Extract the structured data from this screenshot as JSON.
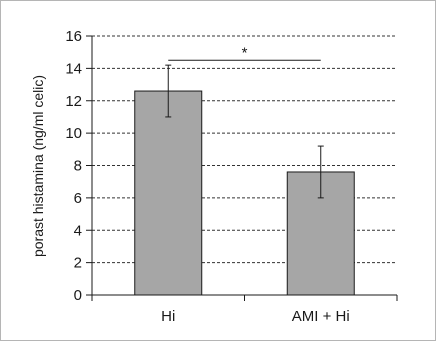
{
  "chart_data": {
    "type": "bar",
    "categories": [
      "Hi",
      "AMI + Hi"
    ],
    "values": [
      12.6,
      7.6
    ],
    "error": [
      1.6,
      1.6
    ],
    "ylabel": "porast histamina (ng/ml celic)",
    "xlabel": "",
    "ylim": [
      0,
      16
    ],
    "yticks": [
      "0",
      "2",
      "4",
      "6",
      "8",
      "10",
      "12",
      "14",
      "16"
    ],
    "grid": true,
    "significance": {
      "between": [
        "Hi",
        "AMI + Hi"
      ],
      "label": "*"
    },
    "colors": {
      "bar": "#a6a6a6",
      "bar_stroke": "#1a1a1a",
      "grid": "#333333",
      "axis": "#1a1a1a"
    }
  }
}
